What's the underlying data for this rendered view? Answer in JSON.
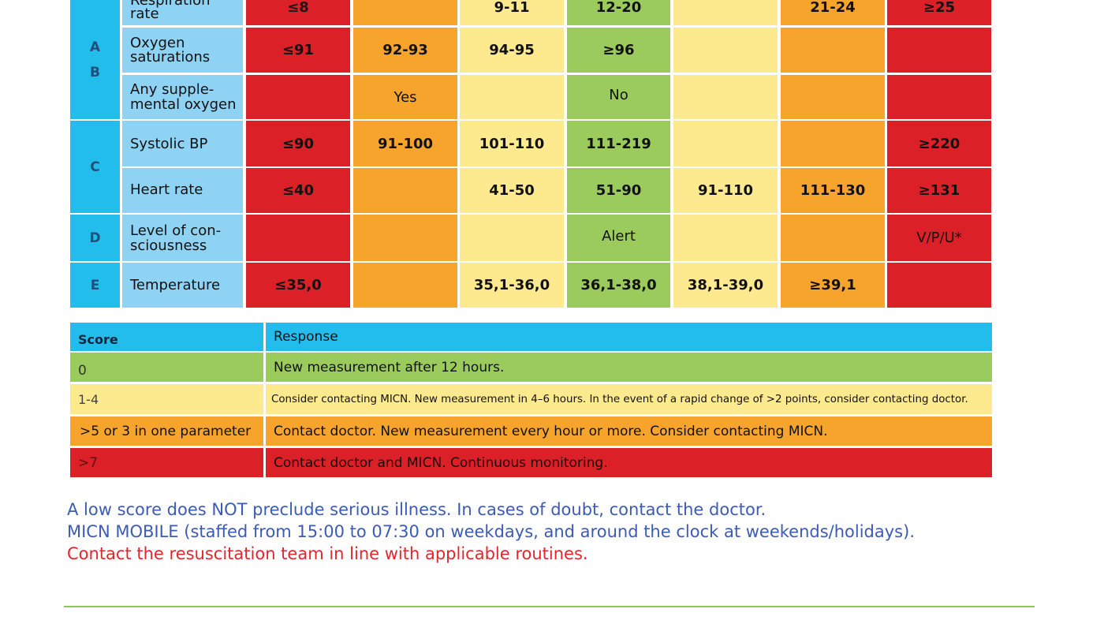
{
  "vitals_table": {
    "rows": [
      {
        "letter": "",
        "label": "Respiration rate",
        "v1": "≤8",
        "v2": "",
        "v3": "9-11",
        "v4": "12-20",
        "v5": "",
        "v6": "21-24",
        "v7": "≥25"
      },
      {
        "letter": "A\nB",
        "label": "Oxygen saturations",
        "v1": "≤91",
        "v2": "92-93",
        "v3": "94-95",
        "v4": "≥96",
        "v5": "",
        "v6": "",
        "v7": ""
      },
      {
        "letter": "",
        "label": "Any supple-\nmental oxygen",
        "v1": "",
        "v2": "Yes",
        "v3": "",
        "v4": "No",
        "v5": "",
        "v6": "",
        "v7": ""
      },
      {
        "letter": "C",
        "label": "Systolic BP",
        "v1": "≤90",
        "v2": "91-100",
        "v3": "101-110",
        "v4": "111-219",
        "v5": "",
        "v6": "",
        "v7": "≥220"
      },
      {
        "letter": "",
        "label": "Heart rate",
        "v1": "≤40",
        "v2": "",
        "v3": "41-50",
        "v4": "51-90",
        "v5": "91-110",
        "v6": "111-130",
        "v7": "≥131"
      },
      {
        "letter": "D",
        "label": "Level of con-\nsciousness",
        "v1": "",
        "v2": "",
        "v3": "",
        "v4": "Alert",
        "v5": "",
        "v6": "",
        "v7": "V/P/U*"
      },
      {
        "letter": "E",
        "label": "Temperature",
        "v1": "≤35,0",
        "v2": "",
        "v3": "35,1-36,0",
        "v4": "36,1-38,0",
        "v5": "38,1-39,0",
        "v6": "≥39,1",
        "v7": ""
      }
    ]
  },
  "score_table": {
    "header": {
      "score": "Score",
      "response": "Response"
    },
    "rows": [
      {
        "score": "0",
        "response": "New measurement after 12 hours."
      },
      {
        "score": "1-4",
        "response": "Consider contacting MICN. New measurement in 4–6 hours. In the event of a rapid change of >2 points, consider contacting doctor."
      },
      {
        "score": ">5 or 3 in one parameter",
        "response": "Contact doctor. New measurement every hour or more. Consider contacting MICN."
      },
      {
        "score": ">7",
        "response": "Contact doctor and MICN. Continuous monitoring."
      }
    ]
  },
  "notes": {
    "line1": "A low score does NOT preclude serious illness. In cases of doubt, contact the doctor.",
    "line2": "MICN MOBILE (staffed from 15:00 to 07:30 on weekdays, and around the clock at weekends/holidays).",
    "line3": "Contact the resuscitation team in line with applicable routines."
  }
}
